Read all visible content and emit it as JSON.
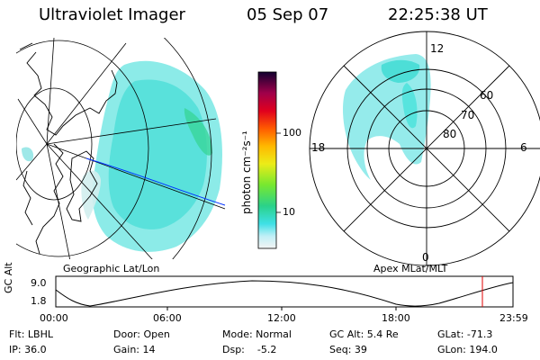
{
  "header": {
    "instrument": "Ultraviolet Imager",
    "date": "05 Sep 07",
    "time": "22:25:38 UT"
  },
  "panels": {
    "geo_label": "Geographic Lat/Lon",
    "apex_label": "Apex  MLat/MLT"
  },
  "colorbar": {
    "label": "photon cm⁻²s⁻¹",
    "ticks": [
      "100",
      "10"
    ]
  },
  "polar": {
    "lat_labels": [
      "60",
      "70",
      "80"
    ],
    "mlt_labels": {
      "top": "12",
      "left": "18",
      "right": "6",
      "bottom": "0"
    }
  },
  "altitude_plot": {
    "axis_label": "GC Alt",
    "y_ticks": [
      "9.0",
      "1.8"
    ],
    "x_ticks": [
      "00:00",
      "06:00",
      "12:00",
      "18:00",
      "23:59"
    ]
  },
  "footer": {
    "row1": {
      "flt": "Flt: LBHL",
      "door": "Door: Open",
      "mode": "Mode: Normal",
      "gcalt": "GC Alt: 5.4 Re",
      "glat": "GLat: -71.3"
    },
    "row2": {
      "ip": "IP: 36.0",
      "gain": "Gain: 14",
      "dsp": "Dsp:    -5.2",
      "seq": "Seq: 39",
      "glon": "GLon: 194.0"
    }
  }
}
